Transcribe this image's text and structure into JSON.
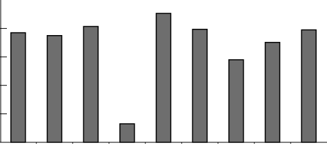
{
  "chart_data": {
    "type": "bar",
    "values": [
      3.85,
      3.75,
      4.07,
      0.65,
      4.53,
      3.97,
      2.9,
      3.51,
      3.95
    ],
    "color": "#6e6e6e",
    "ylim": [
      0,
      5
    ],
    "yticks": [
      0,
      1,
      2,
      3,
      4
    ]
  }
}
